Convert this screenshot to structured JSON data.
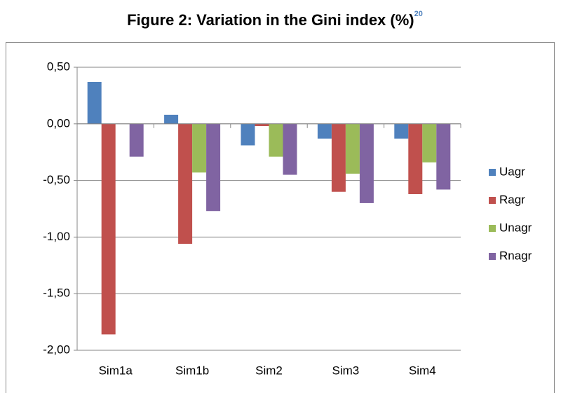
{
  "chart_data": {
    "type": "bar",
    "title": "Figure 2: Variation in the Gini index (%)",
    "title_note": "20",
    "categories": [
      "Sim1a",
      "Sim1b",
      "Sim2",
      "Sim3",
      "Sim4"
    ],
    "series": [
      {
        "name": "Uagr",
        "color": "#4f81bd",
        "values": [
          0.37,
          0.08,
          -0.19,
          -0.13,
          -0.13
        ]
      },
      {
        "name": "Ragr",
        "color": "#c0504d",
        "values": [
          -1.86,
          -1.06,
          -0.02,
          -0.6,
          -0.62
        ]
      },
      {
        "name": "Unagr",
        "color": "#9bbb59",
        "values": [
          0,
          -0.43,
          -0.29,
          -0.44,
          -0.34
        ]
      },
      {
        "name": "Rnagr",
        "color": "#8064a2",
        "values": [
          -0.29,
          -0.77,
          -0.45,
          -0.7,
          -0.58
        ]
      }
    ],
    "ylim": [
      -2,
      0.5
    ],
    "yticks": [
      {
        "value": -2,
        "label": "-2,00"
      },
      {
        "value": -1.5,
        "label": "-1,50"
      },
      {
        "value": -1,
        "label": "-1,00"
      },
      {
        "value": -0.5,
        "label": "-0,50"
      },
      {
        "value": 0,
        "label": "0,00"
      },
      {
        "value": 0.5,
        "label": "0,50"
      }
    ],
    "grid": true,
    "legend": "right"
  }
}
